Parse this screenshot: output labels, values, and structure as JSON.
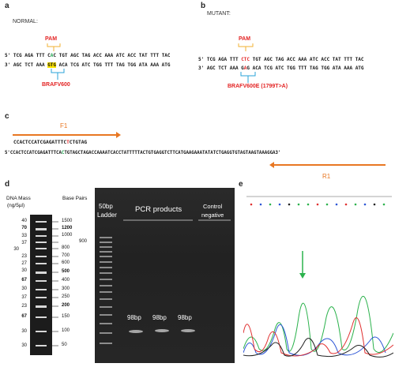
{
  "panel_a": {
    "label": "a",
    "caption": "NORMAL:",
    "pam": "PAM",
    "seq_top_1": "5' TCG AGA TTT C",
    "seq_top_mut": "A",
    "seq_top_2": "C TGT AGC TAG ACC AAA ATC ACC TAT TTT TAC",
    "seq_bot_1": "3' AGC TCT AAA ",
    "seq_bot_hl": "GTG",
    "seq_bot_2": " ACA TCG ATC TGG TTT TAG TGG ATA AAA ATG",
    "site": "BRAFV600"
  },
  "panel_b": {
    "label": "b",
    "caption": "MUTANT:",
    "pam": "PAM",
    "seq_top_1": "5' TCG AGA TTT ",
    "seq_top_mut": "CTC",
    "seq_top_2": " TGT AGC TAG ACC AAA ATC ACC TAT TTT TAC",
    "seq_bot_1": "3' AGC TCT AAA G",
    "seq_bot_mut": "A",
    "seq_bot_2": "G ACA TCG ATC TGG TTT TAG TGG ATA AAA ATG",
    "site": "BRAFV600E (1799T>A)"
  },
  "panel_c": {
    "label": "c",
    "f1": "F1",
    "primer_1": "CCACTCCATCGAGATTTC",
    "primer_mut": "T",
    "primer_2": "CTGTAG",
    "amplicon_1": "5'CCACTCCATCGAGATTTCA",
    "amplicon_mut": "C",
    "amplicon_2": "TGTAGCTAGACCAAAATCACCTATTTTTACTGTGAGGTCTTCATGAAGAAATATATCTGAGGTGTAGTAAGTAAAGGA3'",
    "r1": "R1"
  },
  "panel_d": {
    "label": "d",
    "dna_mass_title": "DNA Mass",
    "dna_mass_unit": "(ng/5µl)",
    "base_pairs_title": "Base Pairs",
    "ladder_bp": [
      "1500",
      "1200",
      "1000",
      "900",
      "800",
      "700",
      "600",
      "500",
      "400",
      "300",
      "250",
      "200",
      "150",
      "100",
      "50"
    ],
    "ladder_mass": [
      "40",
      "70",
      "30",
      "33",
      "37",
      "23",
      "27",
      "30",
      "67",
      "30",
      "37",
      "23",
      "67",
      "30",
      "30"
    ],
    "gel_ladder_label_1": "50bp",
    "gel_ladder_label_2": "Ladder",
    "pcr_products": "PCR products",
    "control_1": "Control",
    "control_2": "negative",
    "band_labels": [
      "98bp",
      "98bp",
      "98bp"
    ]
  },
  "panel_e": {
    "label": "e"
  },
  "colors": {
    "red": "#e32424",
    "orange": "#e87722",
    "pam_bracket": "#f2b233",
    "site_bracket": "#2aa3d8",
    "trace_green": "#2bb24c",
    "trace_blue": "#2c55d6",
    "trace_red": "#e03030",
    "trace_black": "#222222"
  }
}
